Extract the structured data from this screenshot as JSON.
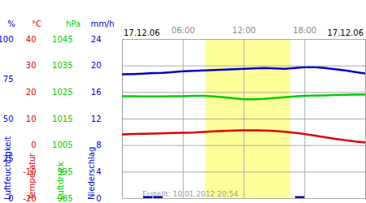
{
  "chart_data": [
    {
      "type": "line",
      "x": [
        0,
        1,
        2,
        3,
        4,
        5,
        6,
        7,
        8,
        9,
        10,
        11,
        12,
        13,
        14,
        15,
        16,
        17,
        18,
        19,
        20,
        21,
        22,
        23,
        24
      ],
      "xlim": [
        0,
        24
      ],
      "xticks": [
        {
          "value": 6,
          "label": "06:00"
        },
        {
          "value": 12,
          "label": "12:00"
        },
        {
          "value": 18,
          "label": "18:00"
        }
      ],
      "daylight": [
        8.2,
        16.6
      ],
      "date_labels": [
        "17.12.06",
        "17.12.06"
      ],
      "caption": "Erstellt: 10.01.2012 20:54",
      "unit": "%",
      "y_label": "Luftfeuchtigkeit",
      "ylim": [
        0,
        100
      ],
      "yticks": [
        0,
        25,
        50,
        75,
        100
      ],
      "series": [
        {
          "color": "#0000cc",
          "values": [
            78,
            78.2,
            78.5,
            78.8,
            79,
            79.5,
            80,
            80.2,
            80.5,
            80.8,
            81,
            81.2,
            81.5,
            81.8,
            82,
            81.8,
            81.5,
            82,
            82.5,
            82.5,
            82,
            81.3,
            80.5,
            79.5,
            78.5
          ]
        }
      ]
    },
    {
      "type": "line",
      "x": [
        0,
        1,
        2,
        3,
        4,
        5,
        6,
        7,
        8,
        9,
        10,
        11,
        12,
        13,
        14,
        15,
        16,
        17,
        18,
        19,
        20,
        21,
        22,
        23,
        24
      ],
      "xlim": [
        0,
        24
      ],
      "unit": "°C",
      "y_label": "Temperatur",
      "ylim": [
        -20,
        40
      ],
      "yticks": [
        -20,
        -10,
        0,
        10,
        20,
        30,
        40
      ],
      "grid": true,
      "series": [
        {
          "color": "#dd0000",
          "values": [
            4.2,
            4.3,
            4.4,
            4.5,
            4.6,
            4.7,
            4.8,
            4.9,
            5.1,
            5.3,
            5.5,
            5.6,
            5.7,
            5.7,
            5.6,
            5.5,
            5.2,
            4.8,
            4.3,
            3.7,
            3.1,
            2.5,
            2,
            1.5,
            1.1
          ]
        }
      ]
    },
    {
      "type": "line",
      "x": [
        0,
        1,
        2,
        3,
        4,
        5,
        6,
        7,
        8,
        9,
        10,
        11,
        12,
        13,
        14,
        15,
        16,
        17,
        18,
        19,
        20,
        21,
        22,
        23,
        24
      ],
      "xlim": [
        0,
        24
      ],
      "unit": "hPa",
      "y_label": "Luftdruck",
      "ylim": [
        985,
        1045
      ],
      "yticks": [
        985,
        995,
        1005,
        1015,
        1025,
        1035,
        1045
      ],
      "series": [
        {
          "color": "#00cc00",
          "values": [
            1023.6,
            1023.6,
            1023.5,
            1023.5,
            1023.5,
            1023.6,
            1023.6,
            1023.7,
            1023.7,
            1023.5,
            1023.2,
            1022.8,
            1022.4,
            1022.4,
            1022.6,
            1022.9,
            1023.2,
            1023.5,
            1023.7,
            1023.8,
            1023.9,
            1024,
            1024.1,
            1024.2,
            1024.2
          ]
        }
      ]
    },
    {
      "type": "bar",
      "x": [
        2,
        3,
        17
      ],
      "xlim": [
        0,
        24
      ],
      "unit": "mm/h",
      "y_label": "Niederschlag",
      "ylim": [
        0,
        24
      ],
      "yticks": [
        0,
        4,
        8,
        12,
        16,
        20,
        24
      ],
      "series": [
        {
          "color": "#0000cc",
          "values": [
            0.3,
            0.3,
            0.3
          ]
        }
      ]
    }
  ]
}
